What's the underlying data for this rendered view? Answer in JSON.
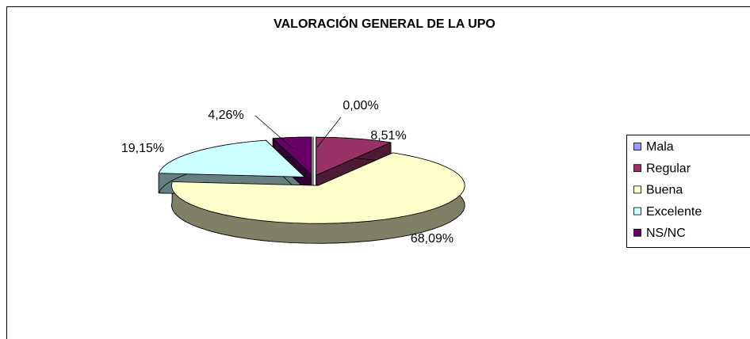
{
  "chart_data": {
    "type": "pie3d",
    "title": "VALORACIÓN GENERAL DE LA UPO",
    "categories": [
      "Mala",
      "Regular",
      "Buena",
      "Excelente",
      "NS/NC"
    ],
    "values": [
      0,
      8.51,
      68.09,
      19.15,
      4.26
    ],
    "value_labels": [
      "0,00%",
      "8,51%",
      "68,09%",
      "19,15%",
      "4,26%"
    ],
    "colors": [
      "#9999ff",
      "#993366",
      "#ffffcc",
      "#ccffff",
      "#660066"
    ],
    "legend": "right"
  }
}
